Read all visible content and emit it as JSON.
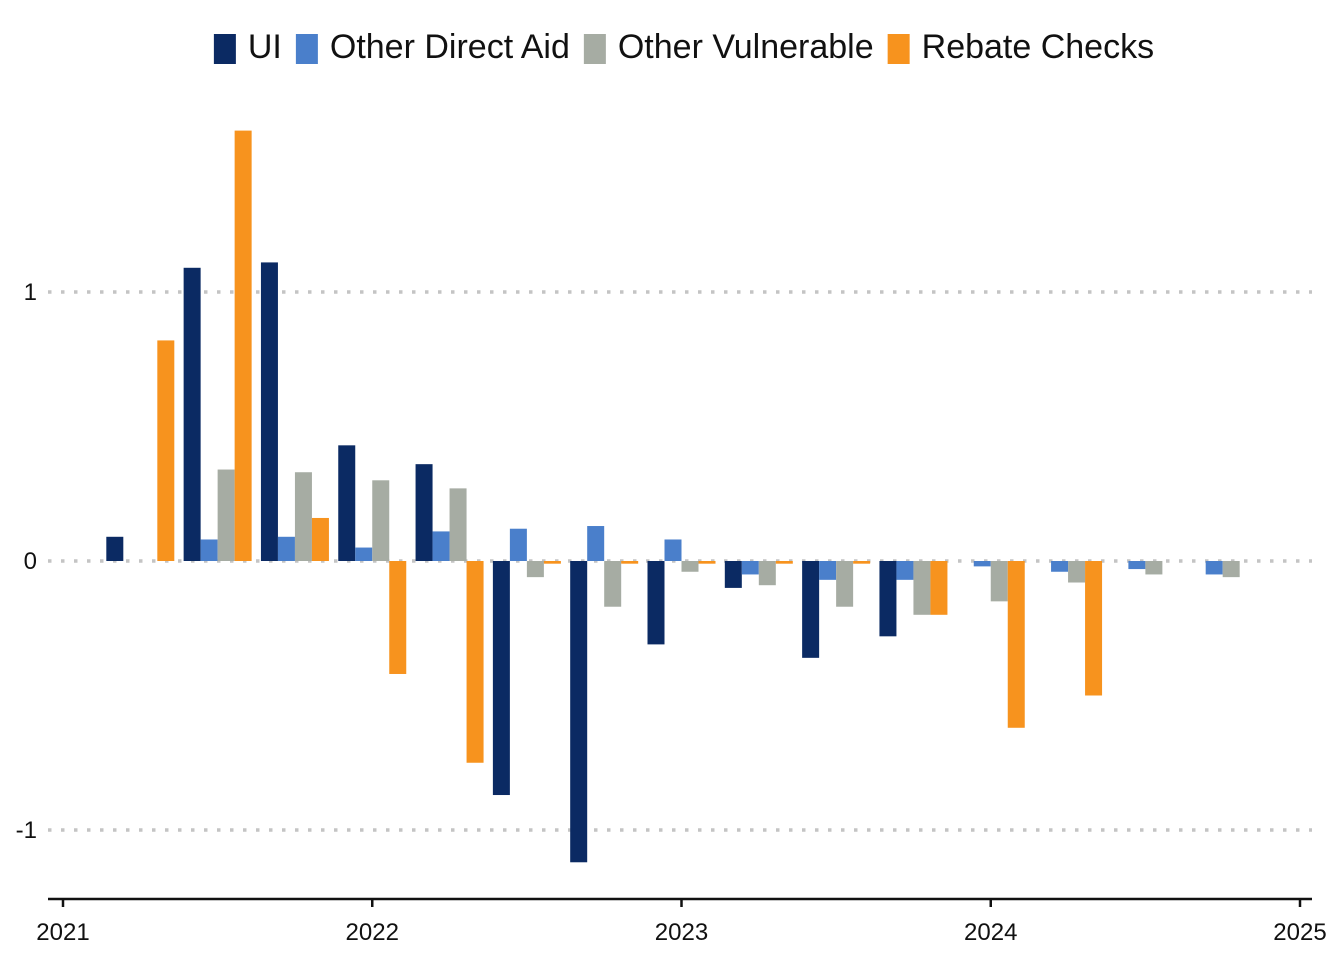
{
  "chart_data": {
    "type": "bar",
    "title": "",
    "xlabel": "",
    "ylabel": "",
    "ylim": [
      -1.25,
      1.85
    ],
    "y_ticks": [
      {
        "value": 1,
        "label": "1"
      },
      {
        "value": 0,
        "label": "0"
      },
      {
        "value": -1,
        "label": "-1"
      }
    ],
    "x_range": [
      2021.0,
      2025.0
    ],
    "x_ticks": [
      {
        "value": 2021,
        "label": "2021"
      },
      {
        "value": 2022,
        "label": "2022"
      },
      {
        "value": 2023,
        "label": "2023"
      },
      {
        "value": 2024,
        "label": "2024"
      },
      {
        "value": 2025,
        "label": "2025"
      }
    ],
    "grid": "horizontal dotted at y ticks",
    "legend_position": "top-center",
    "x": [
      2021.25,
      2021.5,
      2021.75,
      2022.0,
      2022.25,
      2022.5,
      2022.75,
      2023.0,
      2023.25,
      2023.5,
      2023.75,
      2024.0,
      2024.25,
      2024.5,
      2024.75
    ],
    "series": [
      {
        "name": "UI",
        "color": "#0b2a63",
        "values": [
          0.09,
          1.09,
          1.11,
          0.43,
          0.36,
          -0.87,
          -1.12,
          -0.31,
          -0.1,
          -0.36,
          -0.28,
          0.0,
          0.0,
          0.0,
          0.0
        ]
      },
      {
        "name": "Other Direct Aid",
        "color": "#4a7fcb",
        "values": [
          0.0,
          0.08,
          0.09,
          0.05,
          0.11,
          0.12,
          0.13,
          0.08,
          -0.05,
          -0.07,
          -0.07,
          -0.02,
          -0.04,
          -0.03,
          -0.05
        ]
      },
      {
        "name": "Other Vulnerable",
        "color": "#a6aca3",
        "values": [
          0.0,
          0.34,
          0.33,
          0.3,
          0.27,
          -0.06,
          -0.17,
          -0.04,
          -0.09,
          -0.17,
          -0.2,
          -0.15,
          -0.08,
          -0.05,
          -0.06
        ]
      },
      {
        "name": "Rebate Checks",
        "color": "#f7931e",
        "values": [
          0.82,
          1.6,
          0.16,
          -0.42,
          -0.75,
          -0.01,
          -0.01,
          -0.01,
          -0.01,
          -0.01,
          -0.2,
          -0.62,
          -0.5,
          0.0,
          0.0
        ]
      }
    ]
  }
}
